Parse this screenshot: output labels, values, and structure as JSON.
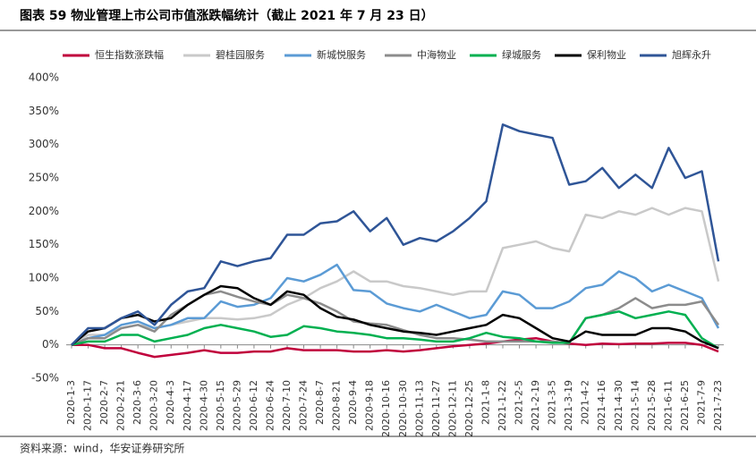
{
  "title": "图表 59 物业管理上市公司市值涨跌幅统计（截止 2021 年 7 月 23 日）",
  "source": "资料来源：wind，华安证券研究所",
  "chart_data": {
    "type": "line",
    "categories": [
      "2020-1-3",
      "2020-1-17",
      "2020-2-7",
      "2020-2-21",
      "2020-3-6",
      "2020-3-20",
      "2020-4-3",
      "2020-4-17",
      "2020-4-30",
      "2020-5-15",
      "2020-5-29",
      "2020-6-12",
      "2020-6-24",
      "2020-7-10",
      "2020-7-24",
      "2020-8-7",
      "2020-8-21",
      "2020-9-4",
      "2020-9-18",
      "2020-10-16",
      "2020-10-30",
      "2020-11-13",
      "2020-11-27",
      "2020-12-11",
      "2020-12-25",
      "2021-1-8",
      "2021-1-22",
      "2021-2-5",
      "2021-2-19",
      "2021-3-5",
      "2021-3-19",
      "2021-4-2",
      "2021-4-16",
      "2021-4-30",
      "2021-5-14",
      "2021-5-28",
      "2021-6-11",
      "2021-6-25",
      "2021-7-9",
      "2021-7-23"
    ],
    "series": [
      {
        "name": "恒生指数涨跌幅",
        "color": "#c0003c",
        "values": [
          0,
          0,
          -5,
          -5,
          -12,
          -18,
          -15,
          -12,
          -8,
          -12,
          -12,
          -10,
          -10,
          -5,
          -8,
          -8,
          -8,
          -10,
          -10,
          -8,
          -10,
          -8,
          -5,
          -2,
          0,
          2,
          5,
          8,
          10,
          5,
          2,
          0,
          2,
          1,
          2,
          2,
          3,
          3,
          0,
          -10
        ]
      },
      {
        "name": "碧桂园服务",
        "color": "#c9c9c9",
        "values": [
          0,
          15,
          15,
          25,
          30,
          25,
          30,
          35,
          40,
          40,
          38,
          40,
          45,
          60,
          70,
          85,
          95,
          110,
          95,
          95,
          88,
          85,
          80,
          75,
          80,
          80,
          145,
          150,
          155,
          145,
          140,
          195,
          190,
          200,
          195,
          205,
          195,
          205,
          200,
          95
        ]
      },
      {
        "name": "新城悦服务",
        "color": "#5b9bd5",
        "values": [
          0,
          10,
          15,
          30,
          35,
          25,
          30,
          40,
          40,
          65,
          57,
          60,
          70,
          100,
          95,
          105,
          120,
          82,
          80,
          62,
          55,
          50,
          60,
          50,
          40,
          45,
          80,
          75,
          55,
          55,
          65,
          85,
          90,
          110,
          100,
          80,
          90,
          80,
          70,
          25
        ]
      },
      {
        "name": "中海物业",
        "color": "#8c8c8c",
        "values": [
          0,
          10,
          10,
          25,
          30,
          20,
          45,
          60,
          75,
          80,
          72,
          65,
          60,
          75,
          70,
          62,
          50,
          35,
          32,
          30,
          22,
          15,
          10,
          10,
          8,
          5,
          5,
          5,
          5,
          5,
          3,
          40,
          45,
          55,
          70,
          55,
          60,
          60,
          65,
          30
        ]
      },
      {
        "name": "绿城服务",
        "color": "#00b050",
        "values": [
          0,
          5,
          5,
          15,
          15,
          5,
          10,
          15,
          25,
          30,
          25,
          20,
          12,
          15,
          28,
          25,
          20,
          18,
          15,
          10,
          10,
          8,
          5,
          5,
          10,
          18,
          12,
          10,
          5,
          3,
          3,
          40,
          45,
          50,
          40,
          45,
          50,
          45,
          10,
          -5
        ]
      },
      {
        "name": "保利物业",
        "color": "#000000",
        "values": [
          0,
          20,
          25,
          40,
          45,
          35,
          40,
          60,
          75,
          88,
          85,
          70,
          60,
          80,
          75,
          55,
          42,
          38,
          30,
          25,
          20,
          18,
          15,
          20,
          25,
          30,
          45,
          40,
          25,
          10,
          5,
          20,
          15,
          15,
          15,
          25,
          25,
          20,
          5,
          -5
        ]
      },
      {
        "name": "旭辉永升",
        "color": "#2f5597",
        "values": [
          0,
          25,
          25,
          40,
          50,
          30,
          60,
          80,
          85,
          125,
          118,
          125,
          130,
          165,
          165,
          182,
          185,
          200,
          170,
          190,
          150,
          160,
          155,
          170,
          190,
          215,
          330,
          320,
          315,
          310,
          240,
          245,
          265,
          235,
          255,
          235,
          295,
          250,
          260,
          125
        ]
      }
    ],
    "ylim": [
      -50,
      400
    ],
    "yticks": [
      {
        "value": -50,
        "label": "-50%"
      },
      {
        "value": 0,
        "label": "0%"
      },
      {
        "value": 50,
        "label": "50%"
      },
      {
        "value": 100,
        "label": "100%"
      },
      {
        "value": 150,
        "label": "150%"
      },
      {
        "value": 200,
        "label": "200%"
      },
      {
        "value": 250,
        "label": "250%"
      },
      {
        "value": 300,
        "label": "300%"
      },
      {
        "value": 350,
        "label": "350%"
      },
      {
        "value": 400,
        "label": "400%"
      }
    ],
    "grid": false
  }
}
